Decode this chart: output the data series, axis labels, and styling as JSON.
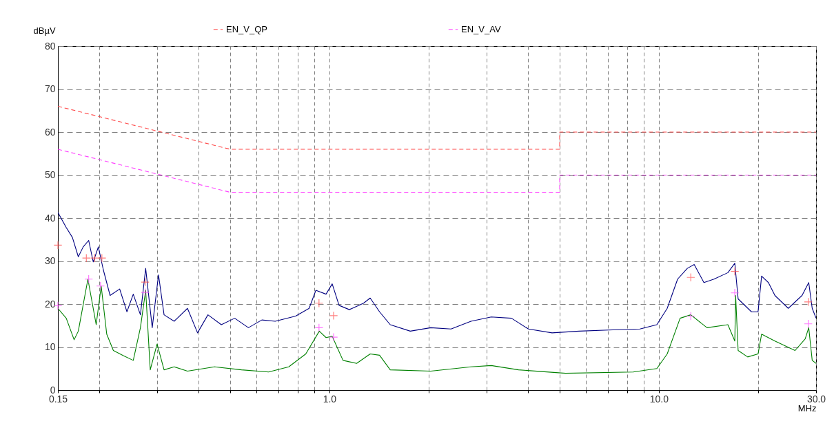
{
  "chart_data": {
    "type": "line",
    "xlabel": "MHz",
    "ylabel": "dBµV",
    "log": "x",
    "grid": true,
    "legend": "top",
    "xlim": [
      0.15,
      30
    ],
    "ylim": [
      0,
      80
    ],
    "xticks": [
      {
        "value": 0.15,
        "label": "0.15"
      },
      {
        "value": 0.2,
        "label": null
      },
      {
        "value": 0.3,
        "label": null
      },
      {
        "value": 0.4,
        "label": null
      },
      {
        "value": 0.5,
        "label": null
      },
      {
        "value": 0.6,
        "label": null
      },
      {
        "value": 0.7,
        "label": null
      },
      {
        "value": 0.8,
        "label": null
      },
      {
        "value": 0.9,
        "label": null
      },
      {
        "value": 1,
        "label": "1.0"
      },
      {
        "value": 2,
        "label": null
      },
      {
        "value": 3,
        "label": null
      },
      {
        "value": 4,
        "label": null
      },
      {
        "value": 5,
        "label": null
      },
      {
        "value": 6,
        "label": null
      },
      {
        "value": 7,
        "label": null
      },
      {
        "value": 8,
        "label": null
      },
      {
        "value": 9,
        "label": null
      },
      {
        "value": 10,
        "label": "10.0"
      },
      {
        "value": 20,
        "label": null
      },
      {
        "value": 30,
        "label": "30.0"
      }
    ],
    "yticks": [
      0,
      10,
      20,
      30,
      40,
      50,
      60,
      70,
      80
    ],
    "series": [
      {
        "name": "EN_V_QP",
        "type": "line",
        "line_style": "dashed",
        "color": "#ff4a4a",
        "x": [
          0.15,
          0.5,
          5,
          5,
          30
        ],
        "values": [
          66,
          56,
          56,
          60,
          60
        ]
      },
      {
        "name": "EN_V_AV",
        "type": "line",
        "line_style": "dashed",
        "color": "#ff40ff",
        "x": [
          0.15,
          0.5,
          5,
          5,
          30
        ],
        "values": [
          56,
          46,
          46,
          50,
          50
        ]
      },
      {
        "type": "line",
        "line_style": "solid",
        "color": "#000080",
        "x": [
          0.15,
          0.159,
          0.166,
          0.173,
          0.179,
          0.186,
          0.192,
          0.199,
          0.206,
          0.216,
          0.231,
          0.243,
          0.254,
          0.267,
          0.277,
          0.29,
          0.303,
          0.315,
          0.338,
          0.371,
          0.398,
          0.428,
          0.47,
          0.516,
          0.568,
          0.624,
          0.685,
          0.79,
          0.868,
          0.91,
          0.977,
          1.02,
          1.07,
          1.15,
          1.27,
          1.33,
          1.42,
          1.53,
          1.76,
          2.03,
          2.34,
          2.69,
          3.1,
          3.57,
          4.02,
          4.74,
          5.73,
          7.25,
          8.76,
          9.86,
          10.6,
          11.4,
          12.2,
          12.8,
          13.7,
          14.7,
          16.2,
          17,
          17.4,
          19.1,
          20,
          20.5,
          21.5,
          22.5,
          24.7,
          27.2,
          28.5,
          29.2,
          30
        ],
        "values": [
          41.3,
          37.8,
          35.5,
          31,
          33.3,
          34.8,
          29.8,
          33.3,
          28,
          22,
          23.5,
          18.2,
          22.3,
          17.5,
          28.3,
          14.5,
          26.8,
          17.5,
          16,
          19,
          13.3,
          17.5,
          15.2,
          16.7,
          14.5,
          16.3,
          16,
          17.2,
          19,
          23.2,
          22.3,
          24.7,
          19.7,
          18.7,
          20.2,
          21.4,
          18.2,
          15.2,
          13.7,
          14.5,
          14.2,
          16,
          17,
          16.7,
          14.2,
          13.3,
          13.7,
          14,
          14.2,
          15.2,
          19,
          25.8,
          28.3,
          29.2,
          25,
          25.8,
          27.3,
          29.5,
          21.2,
          18.2,
          18.2,
          26.5,
          25,
          22,
          19,
          22,
          25,
          19,
          16.7
        ]
      },
      {
        "type": "line",
        "line_style": "solid",
        "color": "#008000",
        "x": [
          0.15,
          0.159,
          0.168,
          0.173,
          0.185,
          0.192,
          0.196,
          0.203,
          0.211,
          0.221,
          0.237,
          0.254,
          0.267,
          0.277,
          0.286,
          0.3,
          0.315,
          0.338,
          0.371,
          0.448,
          0.541,
          0.654,
          0.753,
          0.848,
          0.932,
          0.977,
          1.02,
          1.1,
          1.21,
          1.33,
          1.42,
          1.53,
          2.03,
          2.69,
          3.1,
          3.75,
          5.21,
          8.36,
          9.86,
          10.6,
          11.6,
          12.5,
          14,
          16.2,
          17,
          17.1,
          17.4,
          18.6,
          20,
          20.5,
          22.5,
          25.9,
          27.8,
          28.5,
          29.2,
          30
        ],
        "values": [
          19,
          16.7,
          11.7,
          13.7,
          25.8,
          19,
          15.2,
          24.2,
          13,
          9.2,
          8,
          6.9,
          14.5,
          23.2,
          4.7,
          10.7,
          4.7,
          5.4,
          4.4,
          5.4,
          4.7,
          4.2,
          5.4,
          8.4,
          13.7,
          12.2,
          12.5,
          6.9,
          6.2,
          8.4,
          8.1,
          4.7,
          4.4,
          5.4,
          5.7,
          4.7,
          3.9,
          4.2,
          5,
          8.4,
          16.7,
          17.5,
          14.5,
          15.2,
          11.4,
          22,
          9.2,
          7.7,
          8.4,
          13,
          11.4,
          9.2,
          11.9,
          14.5,
          6.9,
          6.2
        ]
      },
      {
        "type": "scatter",
        "marker": "cross",
        "color": "#ff4a4a",
        "x": [
          0.15,
          0.183,
          0.194,
          0.204,
          0.276,
          0.93,
          1.03,
          12.5,
          17,
          28.4
        ],
        "values": [
          33.7,
          30.7,
          30.7,
          30.7,
          25.1,
          20.2,
          17.3,
          26.2,
          27.6,
          20.5
        ]
      },
      {
        "type": "scatter",
        "marker": "cross",
        "color": "#ff40ff",
        "x": [
          0.15,
          0.186,
          0.202,
          0.276,
          0.93,
          1.03,
          12.5,
          17,
          28.4
        ],
        "values": [
          19.6,
          25.8,
          24.2,
          22.7,
          14.5,
          12.3,
          17.2,
          22.6,
          15.4
        ]
      }
    ]
  }
}
